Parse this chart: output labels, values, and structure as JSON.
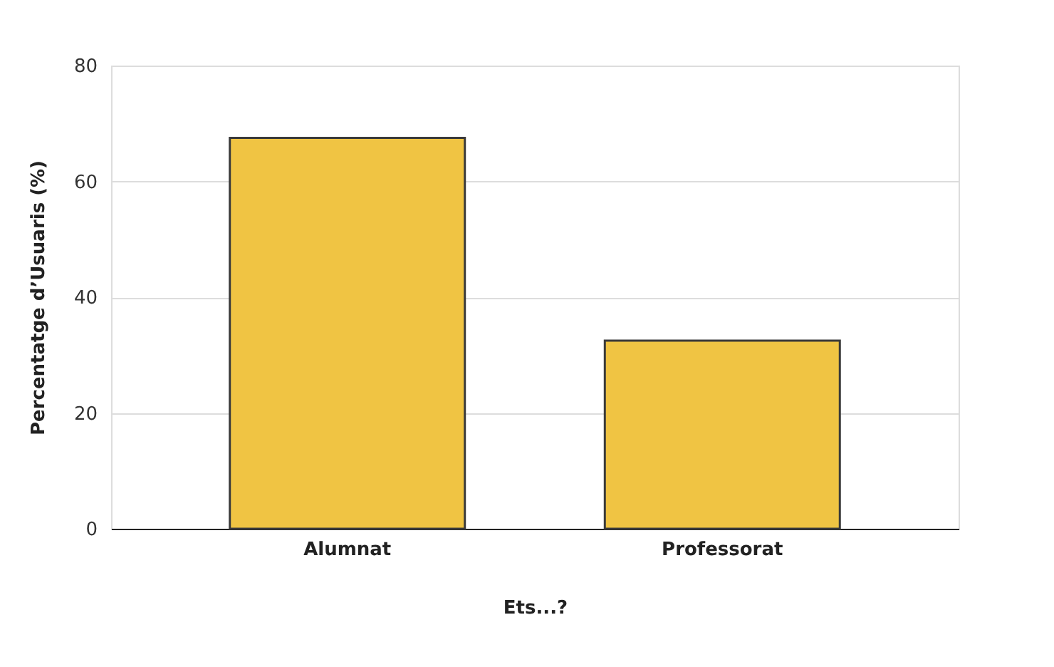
{
  "chart_data": {
    "type": "bar",
    "xlabel": "Ets...?",
    "ylabel": "Percentatge d’Usuaris (%)",
    "categories": [
      "Alumnat",
      "Professorat"
    ],
    "values": [
      67.5,
      32.5
    ],
    "color": "#f0c443",
    "ylim": [
      0,
      80
    ],
    "yticks": [
      0,
      20,
      40,
      60,
      80
    ],
    "grid": "y"
  }
}
